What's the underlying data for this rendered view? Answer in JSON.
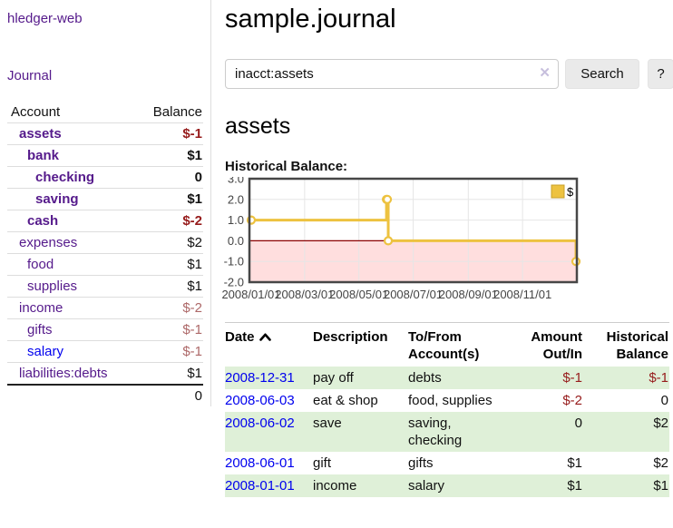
{
  "app": {
    "brand": "hledger-web",
    "nav_journal": "Journal"
  },
  "sidebar": {
    "columns": {
      "account": "Account",
      "balance": "Balance"
    },
    "accounts": [
      {
        "name": "assets",
        "balance": "$-1",
        "depth": 1,
        "bold": true,
        "balance_style": "negative"
      },
      {
        "name": "bank",
        "balance": "$1",
        "depth": 2,
        "bold": true,
        "balance_style": "normal"
      },
      {
        "name": "checking",
        "balance": "0",
        "depth": 3,
        "bold": true,
        "balance_style": "normal"
      },
      {
        "name": "saving",
        "balance": "$1",
        "depth": 3,
        "bold": true,
        "balance_style": "normal"
      },
      {
        "name": "cash",
        "balance": "$-2",
        "depth": 2,
        "bold": true,
        "balance_style": "negative"
      },
      {
        "name": "expenses",
        "balance": "$2",
        "depth": 1,
        "bold": false,
        "balance_style": "normal"
      },
      {
        "name": "food",
        "balance": "$1",
        "depth": 2,
        "bold": false,
        "balance_style": "normal"
      },
      {
        "name": "supplies",
        "balance": "$1",
        "depth": 2,
        "bold": false,
        "balance_style": "normal"
      },
      {
        "name": "income",
        "balance": "$-2",
        "depth": 1,
        "bold": false,
        "balance_style": "negative-soft"
      },
      {
        "name": "gifts",
        "balance": "$-1",
        "depth": 2,
        "bold": false,
        "balance_style": "negative-soft"
      },
      {
        "name": "salary",
        "balance": "$-1",
        "depth": 2,
        "bold": false,
        "balance_style": "negative-soft",
        "link_blue": true
      },
      {
        "name": "liabilities:debts",
        "balance": "$1",
        "depth": 1,
        "bold": false,
        "balance_style": "normal"
      }
    ],
    "total": "0"
  },
  "header": {
    "title": "sample.journal"
  },
  "search": {
    "value": "inacct:assets",
    "clear_icon": "✕",
    "button_label": "Search",
    "help_label": "?"
  },
  "account_page": {
    "title": "assets",
    "chart_label": "Historical Balance:"
  },
  "chart_data": {
    "type": "line",
    "step": true,
    "title": "Historical Balance",
    "legend": [
      {
        "name": "$",
        "color": "#edc240"
      }
    ],
    "legend_position": "top-right",
    "x_epoch": "2008-01-01",
    "x_span_days": 365,
    "x_ticks": [
      {
        "day": 0,
        "label": "2008/01/01"
      },
      {
        "day": 60,
        "label": "2008/03/01"
      },
      {
        "day": 121,
        "label": "2008/05/01"
      },
      {
        "day": 182,
        "label": "2008/07/01"
      },
      {
        "day": 244,
        "label": "2008/09/01"
      },
      {
        "day": 305,
        "label": "2008/11/01"
      }
    ],
    "ylim": [
      -2.0,
      3.0
    ],
    "y_ticks": [
      "3.0",
      "2.0",
      "1.0",
      "0.0",
      "-1.0",
      "-2.0"
    ],
    "grid": true,
    "negative_region_shaded": true,
    "series": [
      {
        "name": "$",
        "points": [
          {
            "date": "2008-01-01",
            "value": 1
          },
          {
            "date": "2008-06-01",
            "value": 2
          },
          {
            "date": "2008-06-02",
            "value": 2
          },
          {
            "date": "2008-06-03",
            "value": 0
          },
          {
            "date": "2008-12-31",
            "value": -1
          }
        ]
      }
    ]
  },
  "register": {
    "headers": {
      "date": "Date",
      "description": "Description",
      "account": "To/From Account(s)",
      "amount": "Amount Out/In",
      "balance": "Historical Balance"
    },
    "sort": {
      "column": "date",
      "direction": "ascending"
    },
    "rows": [
      {
        "date": "2008-12-31",
        "description": "pay off",
        "account": "debts",
        "amount": "$-1",
        "balance": "$-1",
        "amount_negative": true,
        "balance_negative": true
      },
      {
        "date": "2008-06-03",
        "description": "eat & shop",
        "account": "food, supplies",
        "amount": "$-2",
        "balance": "0",
        "amount_negative": true,
        "balance_negative": false
      },
      {
        "date": "2008-06-02",
        "description": "save",
        "account": "saving, checking",
        "amount": "0",
        "balance": "$2",
        "amount_negative": false,
        "balance_negative": false
      },
      {
        "date": "2008-06-01",
        "description": "gift",
        "account": "gifts",
        "amount": "$1",
        "balance": "$2",
        "amount_negative": false,
        "balance_negative": false
      },
      {
        "date": "2008-01-01",
        "description": "income",
        "account": "salary",
        "amount": "$1",
        "balance": "$1",
        "amount_negative": false,
        "balance_negative": false
      }
    ]
  },
  "colors": {
    "link_purple": "#551a8b",
    "link_blue": "#0000ee",
    "negative": "#961b1b",
    "negative_soft": "#ad6868",
    "row_green": "#dff0d8",
    "series_gold": "#edc240",
    "series_gold_border": "#c8a02a",
    "negative_region_pink": "#ffdede",
    "zero_line_red": "#8b0000",
    "grid_line": "#e6e6e6",
    "chart_border": "#474747",
    "button_bg": "#eaeaea"
  }
}
